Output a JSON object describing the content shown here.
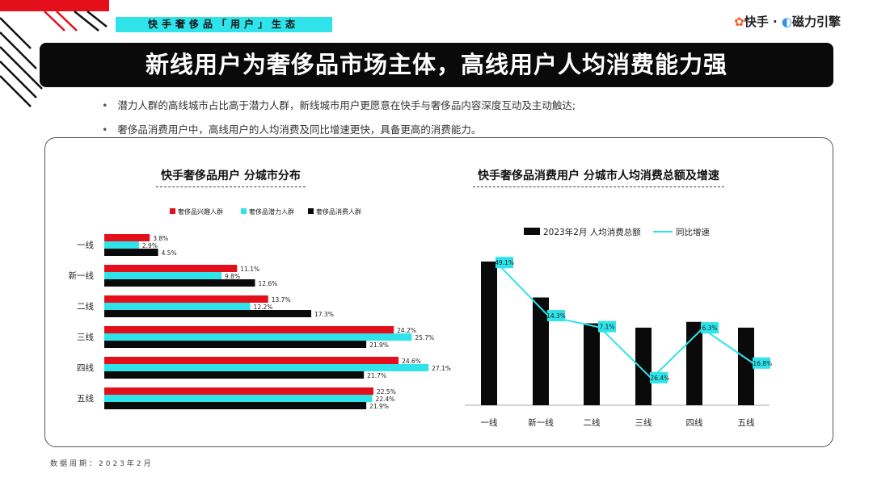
{
  "header": {
    "section_label": "快手奢侈品「用户」生态",
    "brand_kuaishou": "快手",
    "brand_sep": " · ",
    "brand_cili": "磁力引擎"
  },
  "title": "新线用户为奢侈品市场主体，高线用户人均消费能力强",
  "bullets": [
    "潜力人群的高线城市占比高于潜力人群，新线城市用户更愿意在快手与奢侈品内容深度互动及主动触达;",
    "奢侈品消费用户中，高线用户的人均消费及同比增速更快，具备更高的消费能力。"
  ],
  "footer": "数据周期：2023年2月",
  "colors": {
    "red": "#e3101c",
    "cyan": "#2fe3ea",
    "black": "#0a0a0a"
  },
  "chart_data": [
    {
      "type": "bar",
      "orientation": "horizontal",
      "title": "快手奢侈品用户 分城市分布",
      "categories": [
        "一线",
        "新一线",
        "二线",
        "三线",
        "四线",
        "五线"
      ],
      "series": [
        {
          "name": "奢侈品兴趣人群",
          "color": "#e3101c",
          "values": [
            3.8,
            11.1,
            13.7,
            24.2,
            24.6,
            22.5
          ],
          "labels": [
            "3.8%",
            "11.1%",
            "13.7%",
            "24.2%",
            "24.6%",
            "22.5%"
          ]
        },
        {
          "name": "奢侈品潜力人群",
          "color": "#2fe3ea",
          "values": [
            2.9,
            9.8,
            12.2,
            25.7,
            27.1,
            22.4
          ],
          "labels": [
            "2.9%",
            "9.8%",
            "12.2%",
            "25.7%",
            "27.1%",
            "22.4%"
          ]
        },
        {
          "name": "奢侈品消费人群",
          "color": "#0a0a0a",
          "values": [
            4.5,
            12.6,
            17.3,
            21.9,
            21.7,
            21.9
          ],
          "labels": [
            "4.5%",
            "12.6%",
            "17.3%",
            "21.9%",
            "21.7%",
            "21.9%"
          ]
        }
      ],
      "unit": "%",
      "legend": "top"
    },
    {
      "type": "bar+line",
      "title": "快手奢侈品消费用户 分城市人均消费总额及增速",
      "categories": [
        "一线",
        "新一线",
        "二线",
        "三线",
        "四线",
        "五线"
      ],
      "bar_series": {
        "name": "2023年2月 人均消费总额",
        "color": "#0a0a0a",
        "values": [
          100,
          75,
          57,
          54,
          58,
          54
        ]
      },
      "line_series": {
        "name": "同比增速",
        "color": "#2fe3ea",
        "values": [
          49.1,
          14.3,
          7.1,
          -26.4,
          6.3,
          -16.8
        ],
        "labels": [
          "49.1%",
          "14.3%",
          "7.1%",
          "-26.4%",
          "6.3%",
          "-16.8%"
        ]
      },
      "legend": "top"
    }
  ]
}
